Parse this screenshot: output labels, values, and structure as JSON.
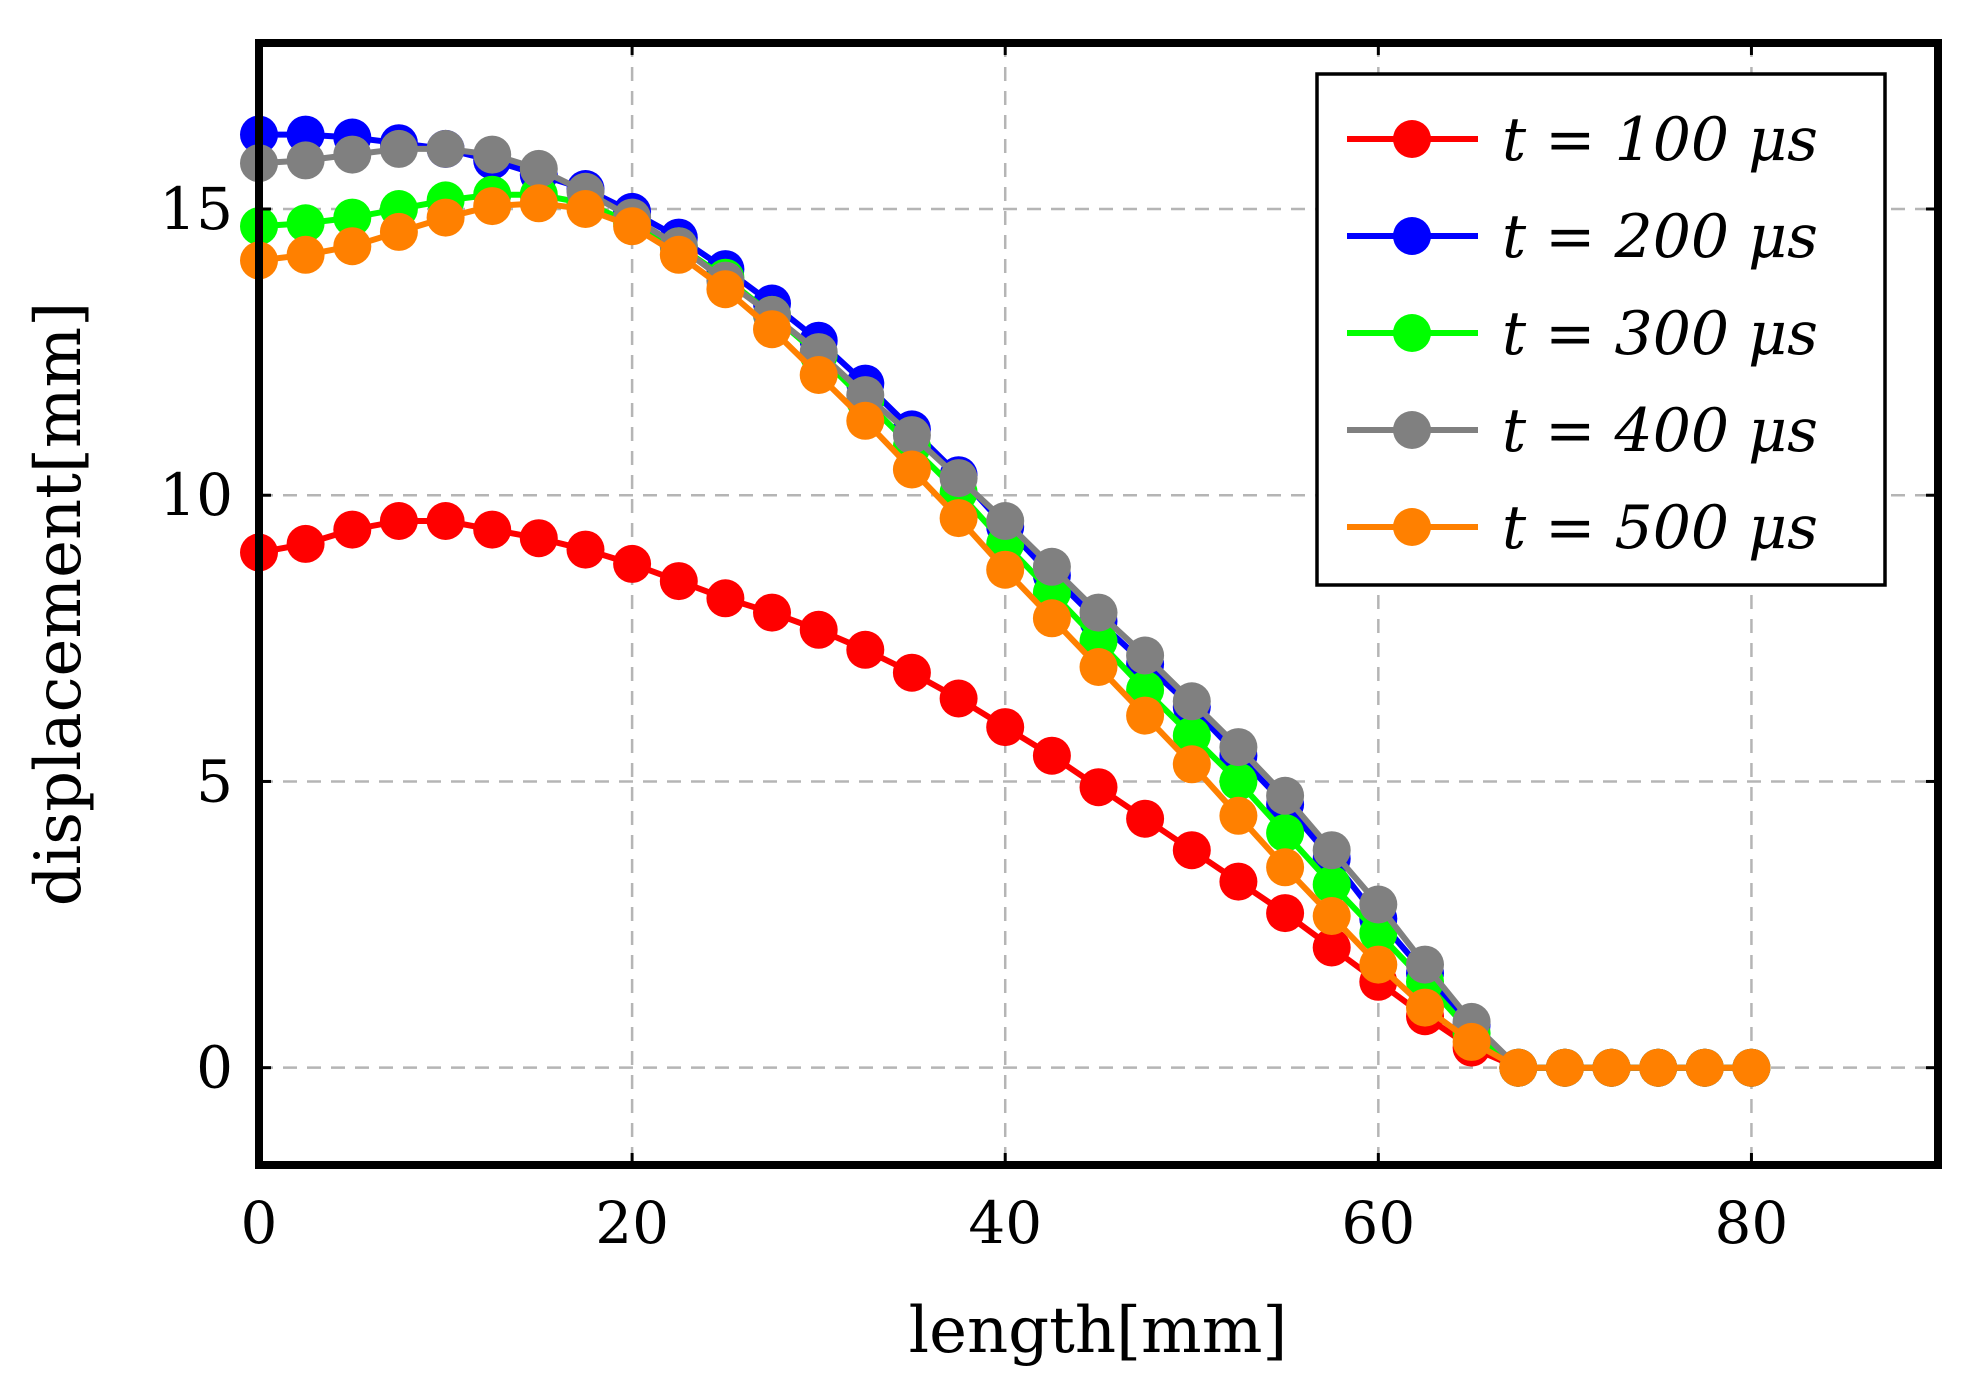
{
  "chart_data": {
    "type": "line",
    "title": "",
    "xlabel": "length[mm]",
    "ylabel": "displacement[mm]",
    "xlim": [
      0,
      90
    ],
    "ylim": [
      -1.7,
      17.9
    ],
    "xticks": [
      0,
      20,
      40,
      60,
      80
    ],
    "yticks": [
      0,
      5,
      10,
      15
    ],
    "grid": true,
    "legend_position": "top-right",
    "x": [
      0,
      2.5,
      5,
      7.5,
      10,
      12.5,
      15,
      17.5,
      20,
      22.5,
      25,
      27.5,
      30,
      32.5,
      35,
      37.5,
      40,
      42.5,
      45,
      47.5,
      50,
      52.5,
      55,
      57.5,
      60,
      62.5,
      65,
      67.5,
      70,
      72.5,
      75,
      77.5,
      80
    ],
    "series": [
      {
        "name": "t = 100 μs",
        "color": "#ff0000",
        "values": [
          9.0,
          9.15,
          9.4,
          9.55,
          9.55,
          9.4,
          9.25,
          9.05,
          8.8,
          8.5,
          8.2,
          7.95,
          7.65,
          7.3,
          6.9,
          6.45,
          5.95,
          5.45,
          4.9,
          4.35,
          3.8,
          3.25,
          2.7,
          2.1,
          1.5,
          0.9,
          0.35,
          0,
          0,
          0,
          0,
          0,
          0
        ]
      },
      {
        "name": "t = 200 μs",
        "color": "#0000ff",
        "values": [
          16.3,
          16.3,
          16.25,
          16.15,
          16.05,
          15.85,
          15.6,
          15.35,
          14.95,
          14.5,
          13.95,
          13.35,
          12.7,
          11.95,
          11.15,
          10.35,
          9.45,
          8.6,
          7.8,
          7.05,
          6.3,
          5.45,
          4.6,
          3.65,
          2.6,
          1.65,
          0.75,
          0,
          0,
          0,
          0,
          0,
          0
        ]
      },
      {
        "name": "t = 300 μs",
        "color": "#00ff00",
        "values": [
          14.7,
          14.75,
          14.85,
          15.0,
          15.15,
          15.25,
          15.25,
          15.1,
          14.75,
          14.35,
          13.8,
          13.15,
          12.45,
          11.65,
          10.85,
          10.05,
          9.15,
          8.3,
          7.45,
          6.6,
          5.8,
          5.0,
          4.1,
          3.2,
          2.35,
          1.5,
          0.6,
          0,
          0,
          0,
          0,
          0,
          0
        ]
      },
      {
        "name": "t = 400 μs",
        "color": "#808080",
        "values": [
          15.8,
          15.85,
          15.95,
          16.05,
          16.05,
          15.95,
          15.7,
          15.3,
          14.85,
          14.35,
          13.75,
          13.15,
          12.5,
          11.75,
          11.05,
          10.3,
          9.55,
          8.75,
          7.95,
          7.2,
          6.4,
          5.6,
          4.75,
          3.8,
          2.85,
          1.8,
          0.8,
          0,
          0,
          0,
          0,
          0,
          0
        ]
      },
      {
        "name": "t = 500 μs",
        "color": "#ff8000",
        "values": [
          14.1,
          14.2,
          14.35,
          14.6,
          14.85,
          15.05,
          15.1,
          15.0,
          14.7,
          14.2,
          13.6,
          12.9,
          12.1,
          11.3,
          10.45,
          9.6,
          8.7,
          7.85,
          7.0,
          6.15,
          5.3,
          4.4,
          3.5,
          2.65,
          1.8,
          1.05,
          0.45,
          0,
          0,
          0,
          0,
          0,
          0
        ]
      }
    ]
  }
}
